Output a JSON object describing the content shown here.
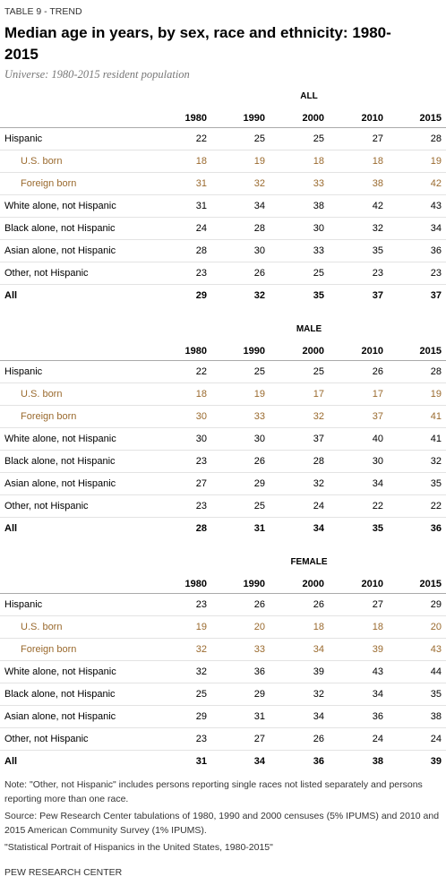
{
  "header": {
    "label": "TABLE 9 - TREND",
    "title": "Median age in years, by sex, race and ethnicity: 1980-2015",
    "subtitle": "Universe: 1980-2015 resident population"
  },
  "sections": [
    {
      "label": "ALL",
      "columns": [
        1980,
        1990,
        2000,
        2010,
        2015
      ],
      "rows": [
        {
          "label": "Hispanic",
          "values": [
            22,
            25,
            25,
            27,
            28
          ]
        },
        {
          "label": "U.S. born",
          "values": [
            18,
            19,
            18,
            18,
            19
          ]
        },
        {
          "label": "Foreign born",
          "values": [
            31,
            32,
            33,
            38,
            42
          ]
        },
        {
          "label": "White alone, not Hispanic",
          "values": [
            31,
            34,
            38,
            42,
            43
          ]
        },
        {
          "label": "Black alone, not Hispanic",
          "values": [
            24,
            28,
            30,
            32,
            34
          ]
        },
        {
          "label": "Asian alone, not Hispanic",
          "values": [
            28,
            30,
            33,
            35,
            36
          ]
        },
        {
          "label": "Other, not Hispanic",
          "values": [
            23,
            26,
            25,
            23,
            23
          ]
        },
        {
          "label": "All",
          "values": [
            29,
            32,
            35,
            37,
            37
          ]
        }
      ]
    },
    {
      "label": "MALE",
      "columns": [
        1980,
        1990,
        2000,
        2010,
        2015
      ],
      "rows": [
        {
          "label": "Hispanic",
          "values": [
            22,
            25,
            25,
            26,
            28
          ]
        },
        {
          "label": "U.S. born",
          "values": [
            18,
            19,
            17,
            17,
            19
          ]
        },
        {
          "label": "Foreign born",
          "values": [
            30,
            33,
            32,
            37,
            41
          ]
        },
        {
          "label": "White alone, not Hispanic",
          "values": [
            30,
            30,
            37,
            40,
            41
          ]
        },
        {
          "label": "Black alone, not Hispanic",
          "values": [
            23,
            26,
            28,
            30,
            32
          ]
        },
        {
          "label": "Asian alone, not Hispanic",
          "values": [
            27,
            29,
            32,
            34,
            35
          ]
        },
        {
          "label": "Other, not Hispanic",
          "values": [
            23,
            25,
            24,
            22,
            22
          ]
        },
        {
          "label": "All",
          "values": [
            28,
            31,
            34,
            35,
            36
          ]
        }
      ]
    },
    {
      "label": "FEMALE",
      "columns": [
        1980,
        1990,
        2000,
        2010,
        2015
      ],
      "rows": [
        {
          "label": "Hispanic",
          "values": [
            23,
            26,
            26,
            27,
            29
          ]
        },
        {
          "label": "U.S. born",
          "values": [
            19,
            20,
            18,
            18,
            20
          ]
        },
        {
          "label": "Foreign born",
          "values": [
            32,
            33,
            34,
            39,
            43
          ]
        },
        {
          "label": "White alone, not Hispanic",
          "values": [
            32,
            36,
            39,
            43,
            44
          ]
        },
        {
          "label": "Black alone, not Hispanic",
          "values": [
            25,
            29,
            32,
            34,
            35
          ]
        },
        {
          "label": "Asian alone, not Hispanic",
          "values": [
            29,
            31,
            34,
            36,
            38
          ]
        },
        {
          "label": "Other, not Hispanic",
          "values": [
            23,
            27,
            26,
            24,
            24
          ]
        },
        {
          "label": "All",
          "values": [
            31,
            34,
            36,
            38,
            39
          ]
        }
      ]
    }
  ],
  "notes": [
    "Note: \"Other, not Hispanic\" includes persons reporting single races not listed separately and persons reporting more than one race.",
    "Source: Pew Research Center tabulations of 1980, 1990 and 2000 censuses (5% IPUMS) and 2010 and 2015 American Community Survey (1% IPUMS).",
    "\"Statistical Portrait of Hispanics in the United States, 1980-2015\""
  ],
  "footer": "PEW RESEARCH CENTER"
}
